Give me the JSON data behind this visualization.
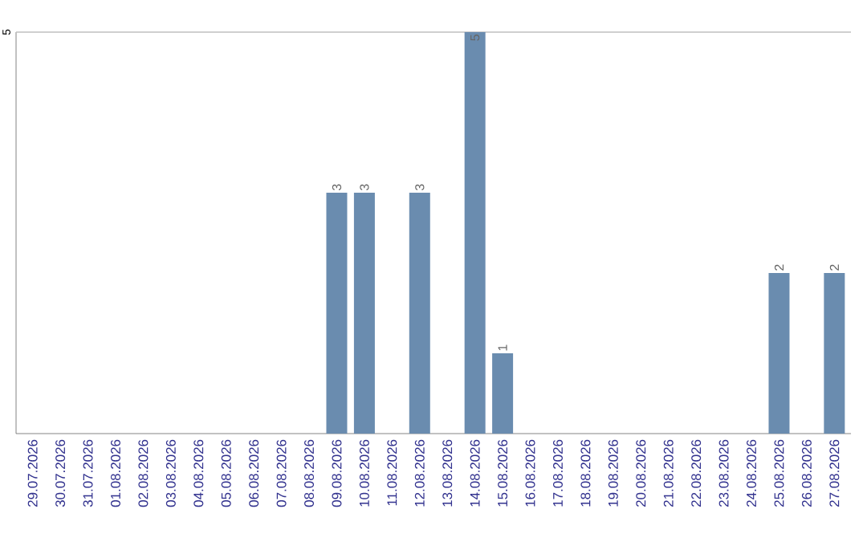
{
  "chart_data": {
    "type": "bar",
    "categories": [
      "29.07.2026",
      "30.07.2026",
      "31.07.2026",
      "01.08.2026",
      "02.08.2026",
      "03.08.2026",
      "04.08.2026",
      "05.08.2026",
      "06.08.2026",
      "07.08.2026",
      "08.08.2026",
      "09.08.2026",
      "10.08.2026",
      "11.08.2026",
      "12.08.2026",
      "13.08.2026",
      "14.08.2026",
      "15.08.2026",
      "16.08.2026",
      "17.08.2026",
      "18.08.2026",
      "19.08.2026",
      "20.08.2026",
      "21.08.2026",
      "22.08.2026",
      "23.08.2026",
      "24.08.2026",
      "25.08.2026",
      "26.08.2026",
      "27.08.2026"
    ],
    "values": [
      null,
      null,
      null,
      null,
      null,
      null,
      null,
      null,
      null,
      null,
      null,
      3,
      3,
      null,
      3,
      null,
      5,
      1,
      null,
      null,
      null,
      null,
      null,
      null,
      null,
      null,
      null,
      2,
      null,
      2
    ],
    "color": "#6a8caf",
    "ylim": [
      0,
      5
    ],
    "yticks": [
      5
    ],
    "data_labels": true
  }
}
